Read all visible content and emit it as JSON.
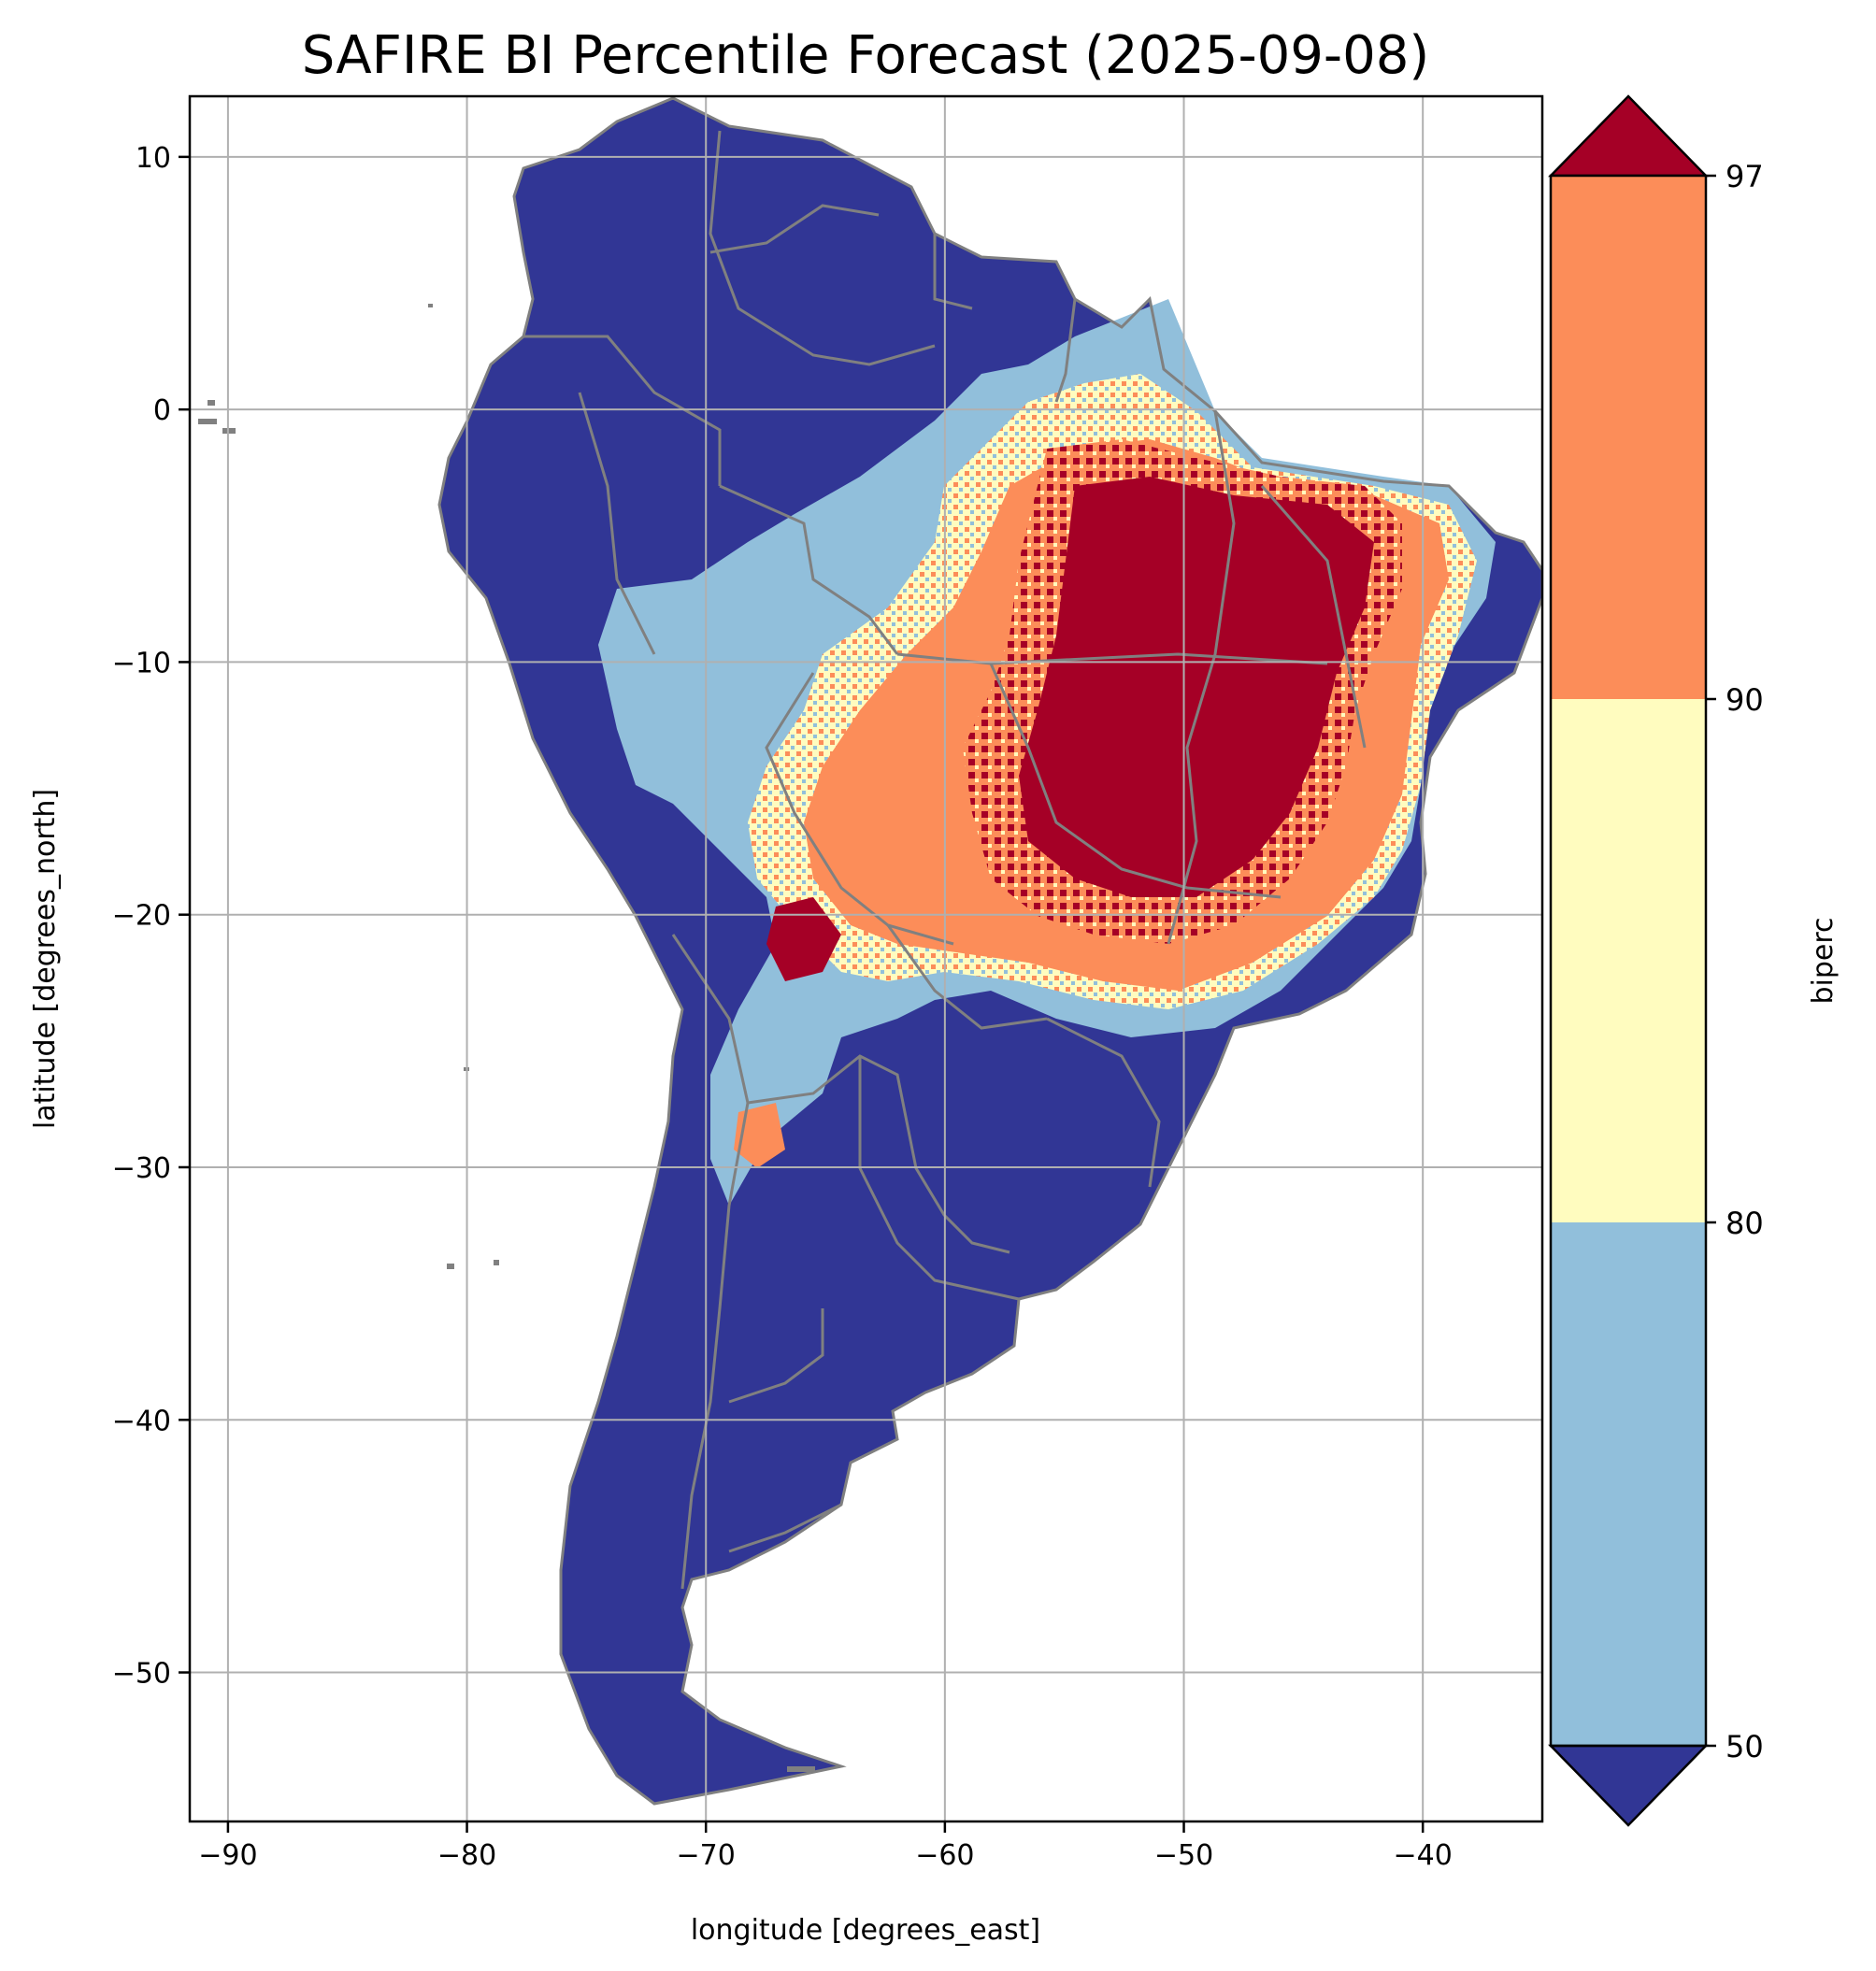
{
  "title": "SAFIRE BI Percentile Forecast (2025-09-08)",
  "x_axis": {
    "label": "longitude [degrees_east]",
    "ticks": [
      {
        "value": -90,
        "label": "−90"
      },
      {
        "value": -80,
        "label": "−80"
      },
      {
        "value": -70,
        "label": "−70"
      },
      {
        "value": -60,
        "label": "−60"
      },
      {
        "value": -50,
        "label": "−50"
      },
      {
        "value": -40,
        "label": "−40"
      }
    ],
    "range": [
      -91.6,
      -35.0
    ]
  },
  "y_axis": {
    "label": "latitude [degrees_north]",
    "ticks": [
      {
        "value": 10,
        "label": "10"
      },
      {
        "value": 0,
        "label": "0"
      },
      {
        "value": -10,
        "label": "−10"
      },
      {
        "value": -20,
        "label": "−20"
      },
      {
        "value": -30,
        "label": "−30"
      },
      {
        "value": -40,
        "label": "−40"
      },
      {
        "value": -50,
        "label": "−50"
      }
    ],
    "range": [
      -55.9,
      12.4
    ]
  },
  "colorbar": {
    "label": "biperc",
    "tick_labels": [
      "50",
      "80",
      "90",
      "97"
    ],
    "bins": [
      {
        "name": "< 50",
        "color": "#313695"
      },
      {
        "name": "50–80",
        "color": "#91bfdb"
      },
      {
        "name": "80–90",
        "color": "#fffcbf"
      },
      {
        "name": "90–97",
        "color": "#fc8d59"
      },
      {
        "name": "> 97",
        "color": "#a50026"
      }
    ],
    "extend": "both"
  },
  "colors": {
    "border": "#808080",
    "grid": "#b0b0b0"
  },
  "map": {
    "region": "South America",
    "grid": true
  }
}
